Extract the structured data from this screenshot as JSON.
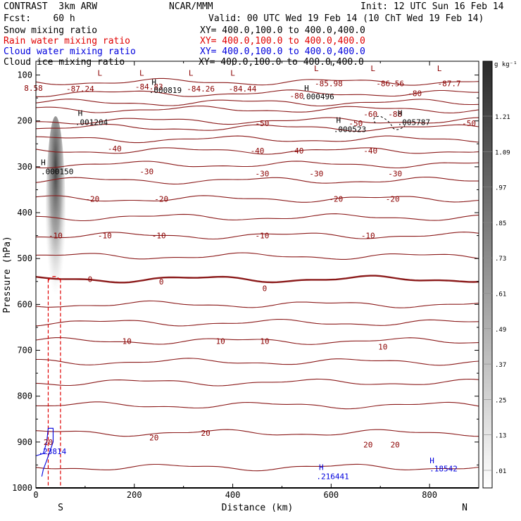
{
  "header": {
    "project": "CONTRAST  3km ARW",
    "org": "NCAR/MMM",
    "init": "Init: 12 UTC Sun 16 Feb 14",
    "fcst": "Fcst:    60 h",
    "valid": "Valid: 00 UTC Wed 19 Feb 14 (10 ChT Wed 19 Feb 14)"
  },
  "legend": [
    {
      "label": "Snow mixing ratio",
      "xy": "XY= 400.0,100.0 to 400.0,400.0",
      "color": "#000000"
    },
    {
      "label": "Rain water mixing ratio",
      "xy": "XY= 400.0,100.0 to 400.0,400.0",
      "color": "#e00000"
    },
    {
      "label": "Cloud water mixing ratio",
      "xy": "XY= 400.0,100.0 to 400.0,400.0",
      "color": "#0000dd"
    },
    {
      "label": "Cloud ice mixing ratio",
      "xy": "XY= 400.0,100.0 to 400.0,400.0",
      "color": "#000000"
    }
  ],
  "chart_data": {
    "type": "contour",
    "xlabel": "Distance (km)",
    "ylabel": "Pressure (hPa)",
    "xlim": [
      0,
      900
    ],
    "ylim": [
      1000,
      70
    ],
    "x_ticks": [
      0,
      200,
      400,
      600,
      800
    ],
    "y_ticks": [
      100,
      200,
      300,
      400,
      500,
      600,
      700,
      800,
      900,
      1000
    ],
    "end_labels": {
      "left": "S",
      "right": "N"
    },
    "colorbar": {
      "unit": "g kg⁻¹",
      "ticks": [
        "1.21",
        "1.09",
        ".97",
        ".85",
        ".73",
        ".61",
        ".49",
        ".37",
        ".25",
        ".13",
        ".01"
      ]
    },
    "temperature_labels": [
      {
        "x": 90,
        "p": 130,
        "text": "-87.24"
      },
      {
        "x": 230,
        "p": 125,
        "text": "-84.83"
      },
      {
        "x": 335,
        "p": 130,
        "text": "-84.26"
      },
      {
        "x": 420,
        "p": 130,
        "text": "-84.44"
      },
      {
        "x": 595,
        "p": 118,
        "text": "-85.98"
      },
      {
        "x": 720,
        "p": 118,
        "text": "-86.56"
      },
      {
        "x": 840,
        "p": 118,
        "text": "-87.7"
      },
      {
        "x": -5,
        "p": 128,
        "text": "8.58"
      },
      {
        "x": 530,
        "p": 145,
        "text": "-80"
      },
      {
        "x": 770,
        "p": 140,
        "text": "-80"
      },
      {
        "x": 680,
        "p": 185,
        "text": "-60"
      },
      {
        "x": 730,
        "p": 185,
        "text": "-88"
      },
      {
        "x": 460,
        "p": 205,
        "text": "-50"
      },
      {
        "x": 650,
        "p": 205,
        "text": "-50"
      },
      {
        "x": 880,
        "p": 205,
        "text": "-50"
      },
      {
        "x": 160,
        "p": 260,
        "text": "-40"
      },
      {
        "x": 450,
        "p": 265,
        "text": "-40"
      },
      {
        "x": 530,
        "p": 265,
        "text": "-40"
      },
      {
        "x": 680,
        "p": 265,
        "text": "-40"
      },
      {
        "x": 225,
        "p": 310,
        "text": "-30"
      },
      {
        "x": 460,
        "p": 315,
        "text": "-30"
      },
      {
        "x": 570,
        "p": 315,
        "text": "-30"
      },
      {
        "x": 730,
        "p": 315,
        "text": "-30"
      },
      {
        "x": 115,
        "p": 370,
        "text": "-20"
      },
      {
        "x": 255,
        "p": 370,
        "text": "-20"
      },
      {
        "x": 610,
        "p": 370,
        "text": "-20"
      },
      {
        "x": 725,
        "p": 370,
        "text": "-20"
      },
      {
        "x": 40,
        "p": 450,
        "text": "-10"
      },
      {
        "x": 140,
        "p": 450,
        "text": "-10"
      },
      {
        "x": 250,
        "p": 450,
        "text": "-10"
      },
      {
        "x": 460,
        "p": 450,
        "text": "-10"
      },
      {
        "x": 675,
        "p": 450,
        "text": "-10"
      },
      {
        "x": 110,
        "p": 545,
        "text": "0"
      },
      {
        "x": 255,
        "p": 550,
        "text": "0"
      },
      {
        "x": 465,
        "p": 565,
        "text": "0"
      },
      {
        "x": 185,
        "p": 680,
        "text": "10"
      },
      {
        "x": 375,
        "p": 680,
        "text": "10"
      },
      {
        "x": 465,
        "p": 680,
        "text": "10"
      },
      {
        "x": 705,
        "p": 692,
        "text": "10"
      },
      {
        "x": 240,
        "p": 890,
        "text": "20"
      },
      {
        "x": 345,
        "p": 880,
        "text": "20"
      },
      {
        "x": 675,
        "p": 906,
        "text": "20"
      },
      {
        "x": 730,
        "p": 906,
        "text": "20"
      },
      {
        "x": 25,
        "p": 900,
        "text": "20"
      }
    ],
    "isotherm_base_pressures": [
      115,
      140,
      160,
      175,
      200,
      215,
      240,
      265,
      295,
      330,
      370,
      410,
      450,
      495,
      545,
      600,
      640,
      680,
      725,
      770,
      820,
      880,
      955
    ],
    "markers": [
      {
        "x": 130,
        "p": 95,
        "text": "L",
        "color": "#8b0000"
      },
      {
        "x": 215,
        "p": 95,
        "text": "L",
        "color": "#8b0000"
      },
      {
        "x": 315,
        "p": 95,
        "text": "L",
        "color": "#8b0000"
      },
      {
        "x": 400,
        "p": 95,
        "text": "L",
        "color": "#8b0000"
      },
      {
        "x": 570,
        "p": 85,
        "text": "L",
        "color": "#8b0000"
      },
      {
        "x": 685,
        "p": 85,
        "text": "L",
        "color": "#8b0000"
      },
      {
        "x": 820,
        "p": 85,
        "text": "L",
        "color": "#8b0000"
      },
      {
        "x": 240,
        "p": 115,
        "text": "H",
        "color": "#000000"
      },
      {
        "x": 550,
        "p": 128,
        "text": "H",
        "color": "#000000"
      },
      {
        "x": 90,
        "p": 183,
        "text": "H",
        "color": "#000000"
      },
      {
        "x": 615,
        "p": 198,
        "text": "H",
        "color": "#000000"
      },
      {
        "x": 740,
        "p": 183,
        "text": "H",
        "color": "#000000"
      },
      {
        "x": 15,
        "p": 290,
        "text": "H",
        "color": "#000000"
      },
      {
        "x": 580,
        "p": 955,
        "text": "H",
        "color": "#0000dd"
      },
      {
        "x": 805,
        "p": 940,
        "text": "H",
        "color": "#0000dd"
      }
    ],
    "value_labels": [
      {
        "x": 230,
        "p": 133,
        "text": ".000819",
        "color": "#000000"
      },
      {
        "x": 540,
        "p": 147,
        "text": ".000496",
        "color": "#000000"
      },
      {
        "x": 80,
        "p": 203,
        "text": ".001204",
        "color": "#000000"
      },
      {
        "x": 605,
        "p": 218,
        "text": ".000523",
        "color": "#000000"
      },
      {
        "x": 735,
        "p": 203,
        "text": ".005787",
        "color": "#000000"
      },
      {
        "x": 10,
        "p": 310,
        "text": ".000150",
        "color": "#000000"
      },
      {
        "x": 570,
        "p": 975,
        "text": ".216441",
        "color": "#0000dd"
      },
      {
        "x": 800,
        "p": 958,
        "text": ".18542",
        "color": "#0000dd"
      },
      {
        "x": 5,
        "p": 920,
        "text": ".23814",
        "color": "#0000dd"
      }
    ]
  }
}
